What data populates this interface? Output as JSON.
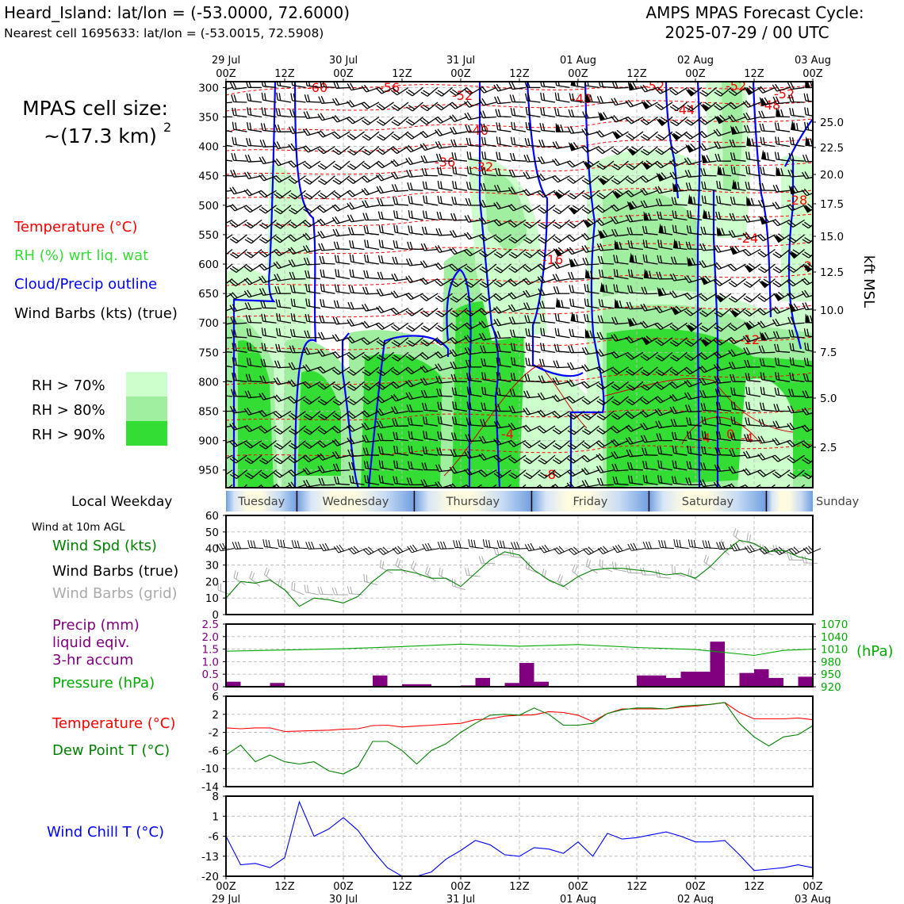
{
  "header": {
    "title": "Heard_Island: lat/lon = (-53.0000, 72.6000)",
    "subtitle": "Nearest cell 1695633: lat/lon = (-53.0015, 72.5908)",
    "cycle_line1": "AMPS MPAS Forecast Cycle:",
    "cycle_line2": "2025-07-29 / 00 UTC"
  },
  "cell_size": {
    "line1": "MPAS cell size:",
    "line2": "~(17.3 km)",
    "sup": "2"
  },
  "legend": {
    "temperature": "Temperature (°C)",
    "rh": "RH (%) wrt liq. wat",
    "cloud": "Cloud/Precip outline",
    "barbs": "Wind Barbs (kts) (true)",
    "rh70": "RH > 70%",
    "rh80": "RH > 80%",
    "rh90": "RH > 90%"
  },
  "colors": {
    "temperature": "#ff0000",
    "rh_label": "#33dd33",
    "cloud": "#0000ff",
    "rh70": "#ccffcc",
    "rh80": "#a0eea0",
    "rh90": "#33dd33",
    "wind_speed": "#008000",
    "dewpoint": "#008000",
    "precip": "#800080",
    "pressure": "#00aa00",
    "windchill": "#0000ff",
    "grid_barbs": "#aaaaaa"
  },
  "time_axis": {
    "top_dates": [
      "29 Jul",
      "30 Jul",
      "31 Jul",
      "01 Aug",
      "02 Aug",
      "03 Aug"
    ],
    "hour_labels": [
      "00Z",
      "12Z",
      "00Z",
      "12Z",
      "00Z",
      "12Z",
      "00Z",
      "12Z",
      "00Z",
      "12Z",
      "00Z"
    ],
    "bottom_dates": [
      "29 Jul",
      "30 Jul",
      "31 Jul",
      "01 Aug",
      "02 Aug",
      "03 Aug"
    ]
  },
  "weekday": {
    "label": "Local Weekday",
    "days": [
      "Tuesday",
      "Wednesday",
      "Thursday",
      "Friday",
      "Saturday",
      "Sunday"
    ]
  },
  "wind10m": {
    "title": "Wind at 10m AGL",
    "spd_label": "Wind Spd (kts)",
    "true_label": "Wind Barbs (true)",
    "grid_label": "Wind Barbs (grid)"
  },
  "precip_panel": {
    "l1": "Precip (mm)",
    "l2": "liquid eqiv.",
    "l3": "3-hr accum",
    "pressure_label": "Pressure (hPa)",
    "right_unit": "(hPa)"
  },
  "temp_panel": {
    "temp_label": "Temperature (°C)",
    "dew_label": "Dew Point T (°C)"
  },
  "chill_panel": {
    "label": "Wind Chill T (°C)"
  },
  "chart_data": [
    {
      "type": "heatmap",
      "name": "time-height cross section",
      "y_axis": {
        "ticks_hpa": [
          300,
          350,
          400,
          450,
          500,
          550,
          600,
          650,
          700,
          750,
          800,
          850,
          900,
          950
        ],
        "right_ticks_kft": [
          "25.0",
          "22.5",
          "20.0",
          "17.5",
          "15.0",
          "12.5",
          "10.0",
          "7.5",
          "5.0",
          "2.5"
        ],
        "right_label": "kft MSL"
      },
      "temperature_contour_labels": [
        "-60",
        "-56",
        "-52",
        "-48",
        "-52",
        "-52",
        "-44",
        "-48",
        "-52",
        "-40",
        "-36",
        "-32",
        "-28",
        "-24",
        "-16",
        "-20",
        "-12",
        "-4",
        "0",
        "-4",
        "-4",
        "-8"
      ]
    },
    {
      "type": "line",
      "name": "wind speed 10m",
      "x_hours": [
        0,
        3,
        6,
        9,
        12,
        15,
        18,
        21,
        24,
        27,
        30,
        33,
        36,
        39,
        42,
        45,
        48,
        51,
        54,
        57,
        60,
        63,
        66,
        69,
        72,
        75,
        78,
        81,
        84,
        87,
        90,
        93,
        96,
        99,
        102,
        105,
        108,
        111,
        114,
        117,
        120
      ],
      "values": [
        10,
        20,
        19,
        21,
        15,
        5,
        10,
        9,
        7,
        11,
        20,
        27,
        27,
        25,
        22,
        22,
        17,
        25,
        33,
        38,
        36,
        27,
        21,
        17,
        23,
        27,
        28,
        28,
        27,
        26,
        24,
        25,
        22,
        29,
        38,
        45,
        43,
        38,
        39,
        35,
        33
      ],
      "ylim": [
        0,
        60
      ],
      "yticks": [
        0,
        10,
        20,
        30,
        40,
        50,
        60
      ]
    },
    {
      "type": "bar",
      "name": "precipitation 3-hr accum",
      "x_hours": [
        0,
        3,
        6,
        9,
        12,
        15,
        18,
        21,
        24,
        27,
        30,
        33,
        36,
        39,
        42,
        45,
        48,
        51,
        54,
        57,
        60,
        63,
        66,
        69,
        72,
        75,
        78,
        81,
        84,
        87,
        90,
        93,
        96,
        99,
        102,
        105,
        108,
        111,
        114,
        117
      ],
      "values": [
        0.2,
        0,
        0,
        0.15,
        0,
        0,
        0,
        0,
        0,
        0,
        0.45,
        0,
        0.1,
        0.1,
        0,
        0,
        0.05,
        0.35,
        0,
        0.15,
        0.95,
        0.2,
        0,
        0,
        0,
        0,
        0,
        0,
        0.45,
        0.45,
        0.35,
        0.6,
        0.6,
        1.8,
        0,
        0.55,
        0.7,
        0.35,
        0,
        0.4
      ],
      "ylim": [
        0,
        2.5
      ],
      "yticks": [
        "0",
        "0.5",
        "1.0",
        "1.5",
        "2.0",
        "2.5"
      ]
    },
    {
      "type": "line",
      "name": "surface pressure",
      "x_hours": [
        0,
        12,
        24,
        36,
        48,
        60,
        72,
        84,
        96,
        108,
        114,
        120
      ],
      "values": [
        1005,
        1008,
        1011,
        1016,
        1022,
        1017,
        1021,
        1014,
        1009,
        995,
        1007,
        1010
      ],
      "ylim": [
        920,
        1070
      ],
      "yticks": [
        "920",
        "950",
        "980",
        "1010",
        "1040",
        "1070"
      ]
    },
    {
      "type": "line",
      "name": "temperature and dew point",
      "x_hours": [
        0,
        3,
        6,
        9,
        12,
        15,
        18,
        21,
        24,
        27,
        30,
        33,
        36,
        39,
        42,
        45,
        48,
        51,
        54,
        57,
        60,
        63,
        66,
        69,
        72,
        75,
        78,
        81,
        84,
        87,
        90,
        93,
        96,
        99,
        102,
        105,
        108,
        111,
        114,
        117,
        120
      ],
      "series": [
        {
          "name": "Temperature (°C)",
          "values": [
            -1,
            -1.2,
            -1,
            -1,
            -1.8,
            -1.7,
            -1.6,
            -1.5,
            -1.3,
            -1.2,
            -0.5,
            -0.4,
            -0.8,
            -0.6,
            -0.4,
            -0.2,
            0,
            0.8,
            1,
            1.6,
            1.8,
            1.9,
            2.6,
            2.4,
            1.8,
            0.4,
            2.2,
            3.2,
            3.2,
            3.2,
            3.2,
            3.6,
            3.8,
            4.2,
            4.6,
            2.4,
            1.0,
            1.0,
            1.0,
            1.2,
            0.8
          ]
        },
        {
          "name": "Dew Point T (°C)",
          "values": [
            -7,
            -4.8,
            -8.5,
            -7,
            -8.5,
            -9,
            -8.5,
            -10.5,
            -11.2,
            -9.5,
            -4,
            -4,
            -6,
            -9,
            -6,
            -4.5,
            -2,
            0,
            1.8,
            2,
            1.8,
            3.4,
            2,
            -0.4,
            -0.4,
            0,
            2.2,
            3,
            3.4,
            3.4,
            3.2,
            3.8,
            4,
            4.2,
            4.6,
            0,
            -3,
            -5,
            -3,
            -2.5,
            -0.5
          ]
        }
      ],
      "ylim": [
        -14,
        6
      ],
      "yticks": [
        "-14",
        "-10",
        "-6",
        "-2",
        "2",
        "6"
      ]
    },
    {
      "type": "line",
      "name": "wind chill",
      "x_hours": [
        0,
        3,
        6,
        9,
        12,
        15,
        18,
        21,
        24,
        27,
        30,
        33,
        36,
        39,
        42,
        45,
        48,
        51,
        54,
        57,
        60,
        63,
        66,
        69,
        72,
        75,
        78,
        81,
        84,
        87,
        90,
        93,
        96,
        99,
        102,
        105,
        108,
        111,
        114,
        117,
        120
      ],
      "values": [
        -6,
        -16,
        -15.5,
        -17,
        -13.5,
        6,
        -6,
        -3.5,
        0.5,
        -4,
        -11,
        -17,
        -20,
        -20,
        -18.5,
        -14,
        -11,
        -7.5,
        -9,
        -12.5,
        -13,
        -10,
        -10.5,
        -12,
        -8,
        -13,
        -5,
        -7,
        -6.5,
        -5.5,
        -4.5,
        -6,
        -8,
        -8,
        -7.5,
        -12.5,
        -18,
        -17.5,
        -17,
        -16,
        -17
      ],
      "ylim": [
        -20,
        8
      ],
      "yticks": [
        "-20",
        "-13",
        "-6",
        "1",
        "8"
      ]
    }
  ]
}
